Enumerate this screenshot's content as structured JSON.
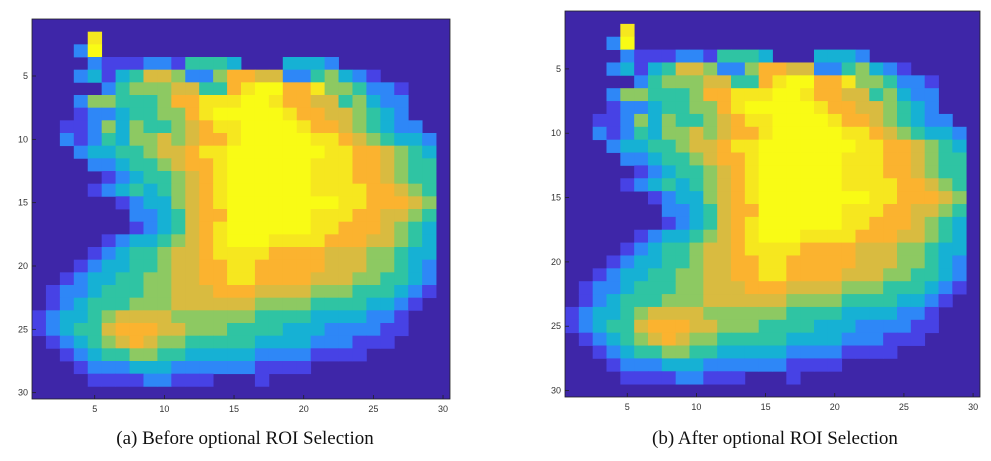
{
  "colors": {
    "colormap": [
      "#3e26a8",
      "#4742e5",
      "#2e87f7",
      "#16b1d4",
      "#2fc4a3",
      "#8dc962",
      "#d9bb40",
      "#fbb32f",
      "#f6e71f",
      "#f9fb15"
    ],
    "frame": "#222222"
  },
  "chart_data": [
    {
      "type": "heatmap",
      "title": "",
      "xlabel": "",
      "ylabel": "",
      "x_ticks": [
        "5",
        "10",
        "15",
        "20",
        "25",
        "30"
      ],
      "y_ticks": [
        "5",
        "10",
        "15",
        "20",
        "25",
        "30"
      ],
      "xlim": [
        1,
        30
      ],
      "ylim": [
        1,
        30
      ],
      "grid": false,
      "caption": "(a) Before optional ROI Selection",
      "cells_note_levels": "0-9 colormap index",
      "rows": [
        "000000000000000000000000000000",
        "000080000000000000000000000000",
        "000290000000000000000000000000",
        "000021112214443000333200000000",
        "000231346652257766224532100000",
        "000002455566447899778554221000",
        "000255444577888998776645322000",
        "000122344557899999877665432000",
        "001125354456788999987765432200",
        "002124355656778999998876543320",
        "000233445667889999999887765430",
        "000022344567789999998887765440",
        "000001234456789999998887765440",
        "000012343456789999998888776540",
        "000000123356789999999988777650",
        "000000022346779999998887766540",
        "000000012346789999998877765430",
        "000001233456789998888777665430",
        "000012344566788887777666554330",
        "000123344566778877777666554320",
        "001233445566778877776665544320",
        "012234445566677766665554443210",
        "012344455566666655554444332100",
        "123345666655555544443333221000",
        "123446777665554444333222211000",
        "012345676554444433332221110000",
        "001234455443333322221111000000",
        "000122233322222211110000000000",
        "000011112211100010000000000000",
        "000000000000000000000000000000"
      ]
    },
    {
      "type": "heatmap",
      "title": "",
      "xlabel": "",
      "ylabel": "",
      "x_ticks": [
        "5",
        "10",
        "15",
        "20",
        "25",
        "30"
      ],
      "y_ticks": [
        "5",
        "10",
        "15",
        "20",
        "25",
        "30"
      ],
      "xlim": [
        1,
        30
      ],
      "ylim": [
        1,
        30
      ],
      "grid": false,
      "caption": "(b) After optional ROI Selection",
      "rows": [
        "000000000000000000000000000000",
        "000080000000000000000000000000",
        "000290000000000000000000000000",
        "000021112214443000333200000000",
        "000231346652257766224532100000",
        "000002455566447899778554221000",
        "000255444577888998776645322000",
        "000122344557899999877665432000",
        "001125354456788999987765432200",
        "002124355656778999998876543320",
        "000233445667889999999887765430",
        "000022344567789999998887765440",
        "000001234456789999998887765440",
        "000012343456789999998888776540",
        "000000123356789999999988777650",
        "000000022346779999998887766540",
        "000000012346789999998877765430",
        "000001233456789998888777665430",
        "000012344566788887777666554330",
        "000123344566778877777666554320",
        "001233445566778877776665544320",
        "012234445566677766665554443210",
        "012344455566666655554444332100",
        "123345666655555544443333221000",
        "123446777665554444333222211000",
        "012345676554444433332221110000",
        "001234455443333322221111000000",
        "000122233322222211110000000000",
        "000011112211100010000000000000",
        "000000000000000000000000000000"
      ]
    }
  ]
}
